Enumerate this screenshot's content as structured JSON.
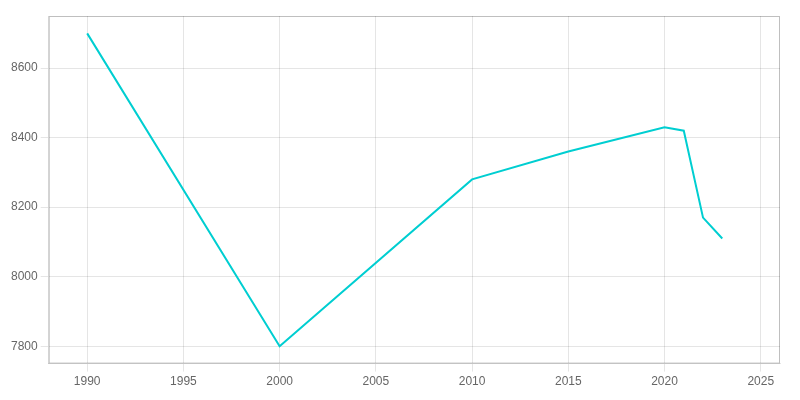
{
  "chart_data": {
    "type": "line",
    "x": [
      1990,
      2000,
      2010,
      2015,
      2020,
      2021,
      2022,
      2023
    ],
    "values": [
      8700,
      7800,
      8280,
      8360,
      8430,
      8420,
      8170,
      8110
    ],
    "color": "#00CED1",
    "xlim": [
      1988,
      2026
    ],
    "ylim": [
      7750,
      8750
    ],
    "xticks": [
      1990,
      1995,
      2000,
      2005,
      2010,
      2015,
      2020,
      2025
    ],
    "yticks": [
      7800,
      8000,
      8200,
      8400,
      8600
    ],
    "grid": true
  }
}
